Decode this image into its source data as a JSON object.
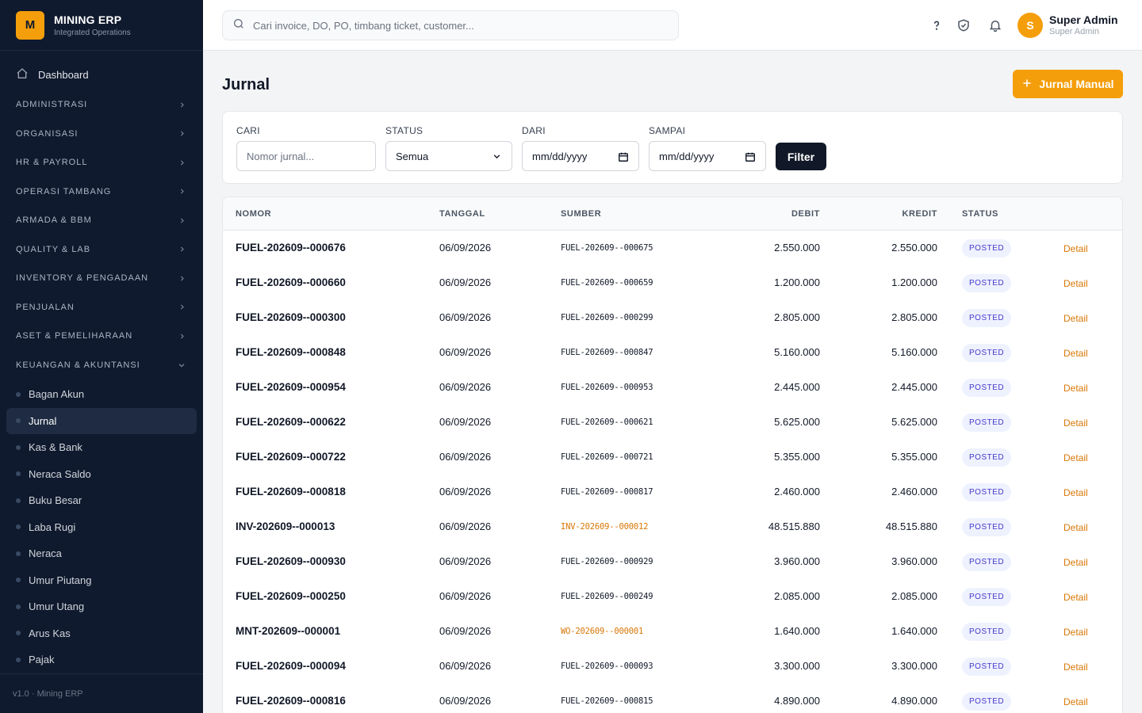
{
  "brand": {
    "logo_letter": "M",
    "title": "MINING ERP",
    "subtitle": "Integrated Operations"
  },
  "sidebar": {
    "dashboard": "Dashboard",
    "groups": [
      "ADMINISTRASI",
      "ORGANISASI",
      "HR & PAYROLL",
      "OPERASI TAMBANG",
      "ARMADA & BBM",
      "QUALITY & LAB",
      "INVENTORY & PENGADAAN",
      "PENJUALAN",
      "ASET & PEMELIHARAAN",
      "KEUANGAN & AKUNTANSI"
    ],
    "sub_items": [
      "Bagan Akun",
      "Jurnal",
      "Kas & Bank",
      "Neraca Saldo",
      "Buku Besar",
      "Laba Rugi",
      "Neraca",
      "Umur Piutang",
      "Umur Utang",
      "Arus Kas",
      "Pajak"
    ],
    "active_item": "Jurnal",
    "footer": "v1.0 · Mining ERP"
  },
  "topbar": {
    "search_placeholder": "Cari invoice, DO, PO, timbang ticket, customer...",
    "user_initial": "S",
    "user_name": "Super Admin",
    "user_role": "Super Admin"
  },
  "page": {
    "title": "Jurnal",
    "new_button": "Jurnal Manual"
  },
  "filters": {
    "search_label": "CARI",
    "search_placeholder": "Nomor jurnal...",
    "status_label": "STATUS",
    "status_value": "Semua",
    "from_label": "DARI",
    "from_placeholder": "mm/dd/yyyy",
    "to_label": "SAMPAI",
    "to_placeholder": "mm/dd/yyyy",
    "filter_button": "Filter"
  },
  "table": {
    "headers": {
      "nomor": "NOMOR",
      "tanggal": "TANGGAL",
      "sumber": "SUMBER",
      "debit": "DEBIT",
      "kredit": "KREDIT",
      "status": "STATUS"
    },
    "detail_label": "Detail",
    "rows": [
      {
        "nomor": "FUEL-202609--000676",
        "tanggal": "06/09/2026",
        "sumber": "FUEL-202609--000675",
        "sumber_link": false,
        "debit": "2.550.000",
        "kredit": "2.550.000",
        "status": "POSTED"
      },
      {
        "nomor": "FUEL-202609--000660",
        "tanggal": "06/09/2026",
        "sumber": "FUEL-202609--000659",
        "sumber_link": false,
        "debit": "1.200.000",
        "kredit": "1.200.000",
        "status": "POSTED"
      },
      {
        "nomor": "FUEL-202609--000300",
        "tanggal": "06/09/2026",
        "sumber": "FUEL-202609--000299",
        "sumber_link": false,
        "debit": "2.805.000",
        "kredit": "2.805.000",
        "status": "POSTED"
      },
      {
        "nomor": "FUEL-202609--000848",
        "tanggal": "06/09/2026",
        "sumber": "FUEL-202609--000847",
        "sumber_link": false,
        "debit": "5.160.000",
        "kredit": "5.160.000",
        "status": "POSTED"
      },
      {
        "nomor": "FUEL-202609--000954",
        "tanggal": "06/09/2026",
        "sumber": "FUEL-202609--000953",
        "sumber_link": false,
        "debit": "2.445.000",
        "kredit": "2.445.000",
        "status": "POSTED"
      },
      {
        "nomor": "FUEL-202609--000622",
        "tanggal": "06/09/2026",
        "sumber": "FUEL-202609--000621",
        "sumber_link": false,
        "debit": "5.625.000",
        "kredit": "5.625.000",
        "status": "POSTED"
      },
      {
        "nomor": "FUEL-202609--000722",
        "tanggal": "06/09/2026",
        "sumber": "FUEL-202609--000721",
        "sumber_link": false,
        "debit": "5.355.000",
        "kredit": "5.355.000",
        "status": "POSTED"
      },
      {
        "nomor": "FUEL-202609--000818",
        "tanggal": "06/09/2026",
        "sumber": "FUEL-202609--000817",
        "sumber_link": false,
        "debit": "2.460.000",
        "kredit": "2.460.000",
        "status": "POSTED"
      },
      {
        "nomor": "INV-202609--000013",
        "tanggal": "06/09/2026",
        "sumber": "INV-202609--000012",
        "sumber_link": true,
        "debit": "48.515.880",
        "kredit": "48.515.880",
        "status": "POSTED"
      },
      {
        "nomor": "FUEL-202609--000930",
        "tanggal": "06/09/2026",
        "sumber": "FUEL-202609--000929",
        "sumber_link": false,
        "debit": "3.960.000",
        "kredit": "3.960.000",
        "status": "POSTED"
      },
      {
        "nomor": "FUEL-202609--000250",
        "tanggal": "06/09/2026",
        "sumber": "FUEL-202609--000249",
        "sumber_link": false,
        "debit": "2.085.000",
        "kredit": "2.085.000",
        "status": "POSTED"
      },
      {
        "nomor": "MNT-202609--000001",
        "tanggal": "06/09/2026",
        "sumber": "WO-202609--000001",
        "sumber_link": true,
        "debit": "1.640.000",
        "kredit": "1.640.000",
        "status": "POSTED"
      },
      {
        "nomor": "FUEL-202609--000094",
        "tanggal": "06/09/2026",
        "sumber": "FUEL-202609--000093",
        "sumber_link": false,
        "debit": "3.300.000",
        "kredit": "3.300.000",
        "status": "POSTED"
      },
      {
        "nomor": "FUEL-202609--000816",
        "tanggal": "06/09/2026",
        "sumber": "FUEL-202609--000815",
        "sumber_link": false,
        "debit": "4.890.000",
        "kredit": "4.890.000",
        "status": "POSTED"
      }
    ]
  },
  "colors": {
    "accent": "#f59e0b",
    "sidebar_bg": "#0f1a2e",
    "link": "#d97706",
    "badge_text": "#4338ca"
  },
  "icons": [
    "search-icon",
    "help-icon",
    "shield-check-icon",
    "bell-icon",
    "home-icon",
    "chevron-right-icon",
    "chevron-down-icon",
    "plus-icon",
    "calendar-icon"
  ]
}
